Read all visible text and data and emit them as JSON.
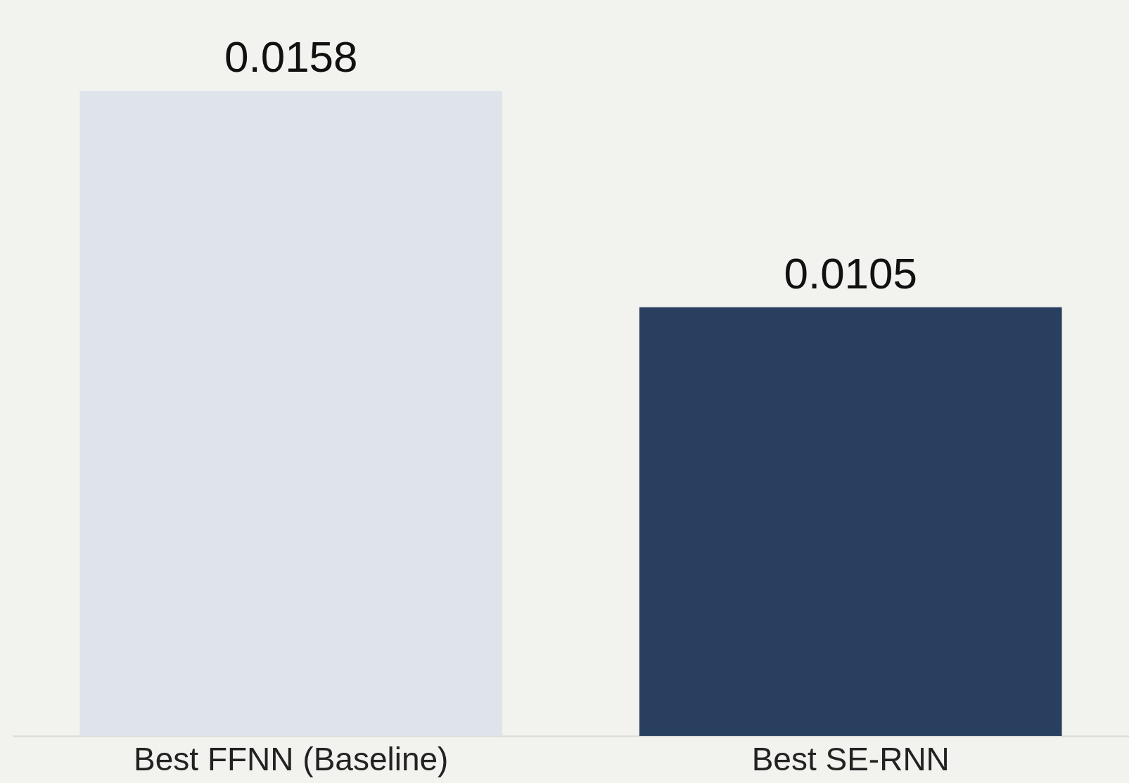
{
  "chart_data": {
    "type": "bar",
    "categories": [
      "Best FFNN (Baseline)",
      "Best SE-RNN"
    ],
    "values": [
      0.0158,
      0.0105
    ],
    "colors": [
      "#dfe3ea",
      "#283f5f"
    ],
    "data_labels": true
  }
}
